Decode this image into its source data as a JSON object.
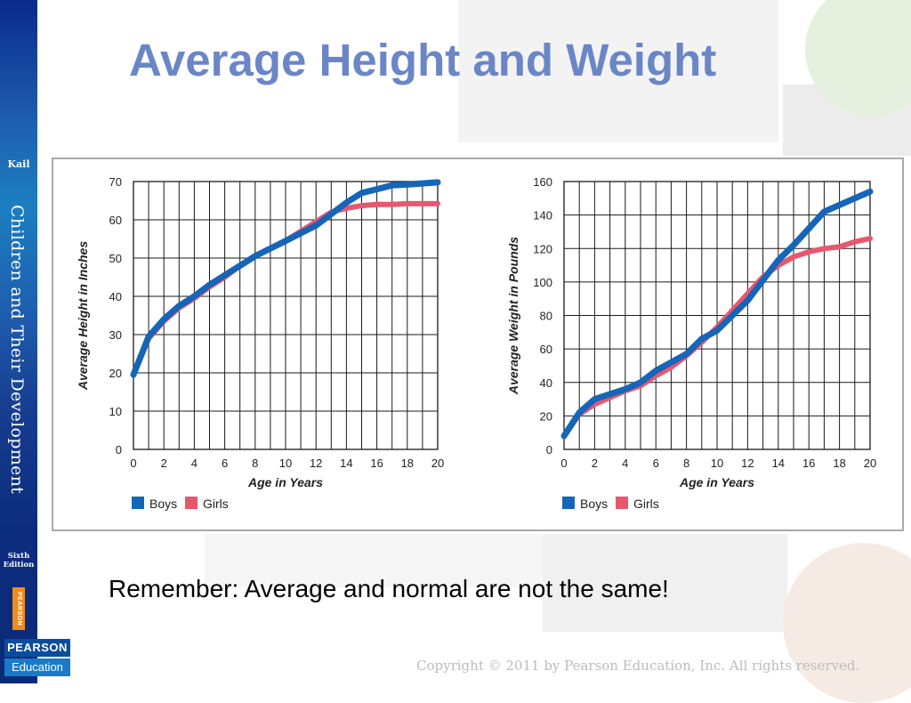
{
  "slide": {
    "title": "Average Height and Weight",
    "remember": "Remember: Average and normal are not the same!",
    "copyright": "Copyright © 2011 by Pearson Education, Inc. All rights reserved."
  },
  "spine": {
    "author": "Kail",
    "book_title": "Children and Their Development",
    "edition": "Sixth Edition",
    "publisher_tab": "PEARSON",
    "logo_top": "PEARSON",
    "logo_bottom": "Education"
  },
  "colors": {
    "boys": "#1565b8",
    "girls": "#e8576e",
    "title": "#6b86c7",
    "grid": "#1a1a1a"
  },
  "chart_data": [
    {
      "type": "line",
      "xlabel": "Age in Years",
      "ylabel": "Average Height in Inches",
      "xlim": [
        0,
        20
      ],
      "ylim": [
        0,
        70
      ],
      "xticks": [
        0,
        2,
        4,
        6,
        8,
        10,
        12,
        14,
        16,
        18,
        20
      ],
      "yticks": [
        0,
        10,
        20,
        30,
        40,
        50,
        60,
        70
      ],
      "grid": true,
      "legend_position": "bottom-left",
      "series": [
        {
          "name": "Boys",
          "x": [
            0,
            1,
            2,
            3,
            4,
            5,
            6,
            7,
            8,
            9,
            10,
            11,
            12,
            13,
            14,
            15,
            16,
            17,
            18,
            19,
            20
          ],
          "y": [
            19.5,
            29.5,
            34,
            37.5,
            40,
            43,
            45.5,
            48,
            50.5,
            52.5,
            54.5,
            56.5,
            58.5,
            61.5,
            64.5,
            67,
            68,
            69,
            69.2,
            69.5,
            69.8
          ]
        },
        {
          "name": "Girls",
          "x": [
            0,
            1,
            2,
            3,
            4,
            5,
            6,
            7,
            8,
            9,
            10,
            11,
            12,
            13,
            14,
            15,
            16,
            17,
            18,
            19,
            20
          ],
          "y": [
            19.5,
            29,
            33.5,
            37,
            39.5,
            42.5,
            45,
            48,
            50.5,
            52.5,
            54.5,
            57,
            59.5,
            62,
            63,
            63.7,
            64,
            64,
            64.2,
            64.2,
            64.2
          ]
        }
      ]
    },
    {
      "type": "line",
      "xlabel": "Age in Years",
      "ylabel": "Average Weight in Pounds",
      "xlim": [
        0,
        20
      ],
      "ylim": [
        0,
        160
      ],
      "xticks": [
        0,
        2,
        4,
        6,
        8,
        10,
        12,
        14,
        16,
        18,
        20
      ],
      "yticks": [
        0,
        20,
        40,
        60,
        80,
        100,
        120,
        140,
        160
      ],
      "grid": true,
      "legend_position": "bottom-left",
      "series": [
        {
          "name": "Boys",
          "x": [
            0,
            1,
            2,
            3,
            4,
            5,
            6,
            7,
            8,
            9,
            10,
            11,
            12,
            13,
            14,
            15,
            16,
            17,
            18,
            19,
            20
          ],
          "y": [
            8,
            22,
            30,
            33,
            36,
            40,
            47,
            52,
            57,
            66,
            71,
            80,
            89,
            101,
            113,
            122,
            132,
            142,
            146,
            150,
            154
          ]
        },
        {
          "name": "Girls",
          "x": [
            0,
            1,
            2,
            3,
            4,
            5,
            6,
            7,
            8,
            9,
            10,
            11,
            12,
            13,
            14,
            15,
            16,
            17,
            18,
            19,
            20
          ],
          "y": [
            8,
            21,
            27,
            31,
            35,
            38,
            44,
            49,
            56,
            64,
            73,
            83,
            93,
            103,
            110,
            115,
            118,
            120,
            121,
            124,
            126
          ]
        }
      ]
    }
  ]
}
